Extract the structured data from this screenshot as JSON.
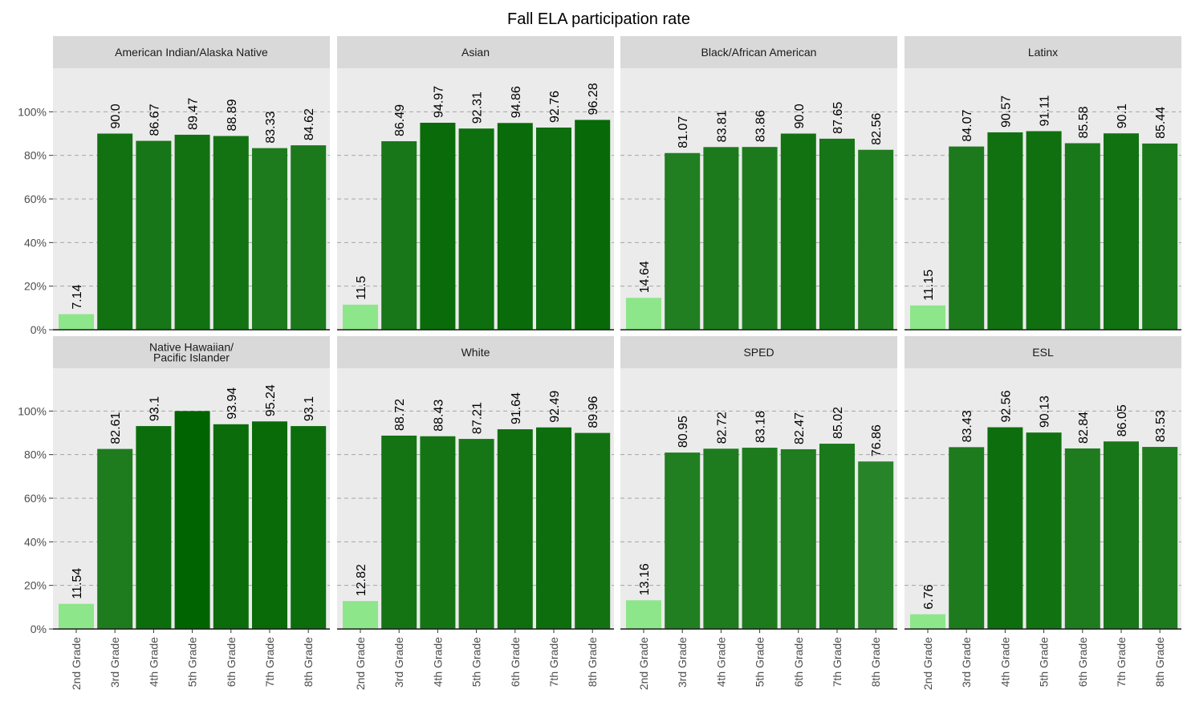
{
  "chart_data": {
    "type": "bar",
    "title": "Fall ELA participation rate",
    "xlabel": "",
    "ylabel": "",
    "ylim": [
      0,
      100
    ],
    "y_ticks": [
      "0%",
      "20%",
      "40%",
      "60%",
      "80%",
      "100%"
    ],
    "y_tick_values": [
      0,
      20,
      40,
      60,
      80,
      100
    ],
    "grid": true,
    "categories": [
      "2nd Grade",
      "3rd Grade",
      "4th Grade",
      "5th Grade",
      "6th Grade",
      "7th Grade",
      "8th Grade"
    ],
    "series": [
      {
        "name": "American Indian/Alaska Native",
        "values": [
          7.14,
          90.0,
          86.67,
          89.47,
          88.89,
          83.33,
          84.62
        ],
        "labels": [
          "7.14",
          "90.0",
          "86.67",
          "89.47",
          "88.89",
          "83.33",
          "84.62"
        ]
      },
      {
        "name": "Asian",
        "values": [
          11.5,
          86.49,
          94.97,
          92.31,
          94.86,
          92.76,
          96.28
        ],
        "labels": [
          "11.5",
          "86.49",
          "94.97",
          "92.31",
          "94.86",
          "92.76",
          "96.28"
        ]
      },
      {
        "name": "Black/African American",
        "values": [
          14.64,
          81.07,
          83.81,
          83.86,
          90.0,
          87.65,
          82.56
        ],
        "labels": [
          "14.64",
          "81.07",
          "83.81",
          "83.86",
          "90.0",
          "87.65",
          "82.56"
        ]
      },
      {
        "name": "Latinx",
        "values": [
          11.15,
          84.07,
          90.57,
          91.11,
          85.58,
          90.1,
          85.44
        ],
        "labels": [
          "11.15",
          "84.07",
          "90.57",
          "91.11",
          "85.58",
          "90.1",
          "85.44"
        ]
      },
      {
        "name": "Native Hawaiian/\nPacific Islander",
        "values": [
          11.54,
          82.61,
          93.1,
          100,
          93.94,
          95.24,
          93.1
        ],
        "labels": [
          "11.54",
          "82.61",
          "93.1",
          "",
          "93.94",
          "95.24",
          "93.1"
        ]
      },
      {
        "name": "White",
        "values": [
          12.82,
          88.72,
          88.43,
          87.21,
          91.64,
          92.49,
          89.96
        ],
        "labels": [
          "12.82",
          "88.72",
          "88.43",
          "87.21",
          "91.64",
          "92.49",
          "89.96"
        ]
      },
      {
        "name": "SPED",
        "values": [
          13.16,
          80.95,
          82.72,
          83.18,
          82.47,
          85.02,
          76.86
        ],
        "labels": [
          "13.16",
          "80.95",
          "82.72",
          "83.18",
          "82.47",
          "85.02",
          "76.86"
        ]
      },
      {
        "name": "ESL",
        "values": [
          6.76,
          83.43,
          92.56,
          90.13,
          82.84,
          86.05,
          83.53
        ],
        "labels": [
          "6.76",
          "83.43",
          "92.56",
          "90.13",
          "82.84",
          "86.05",
          "83.53"
        ]
      }
    ],
    "colors": {
      "low": "#8de68a",
      "scale": [
        "#2a852a",
        "#006400"
      ],
      "panel_bg": "#ebebeb",
      "strip_bg": "#d9d9d9",
      "grid": "#a6a6a6"
    }
  }
}
